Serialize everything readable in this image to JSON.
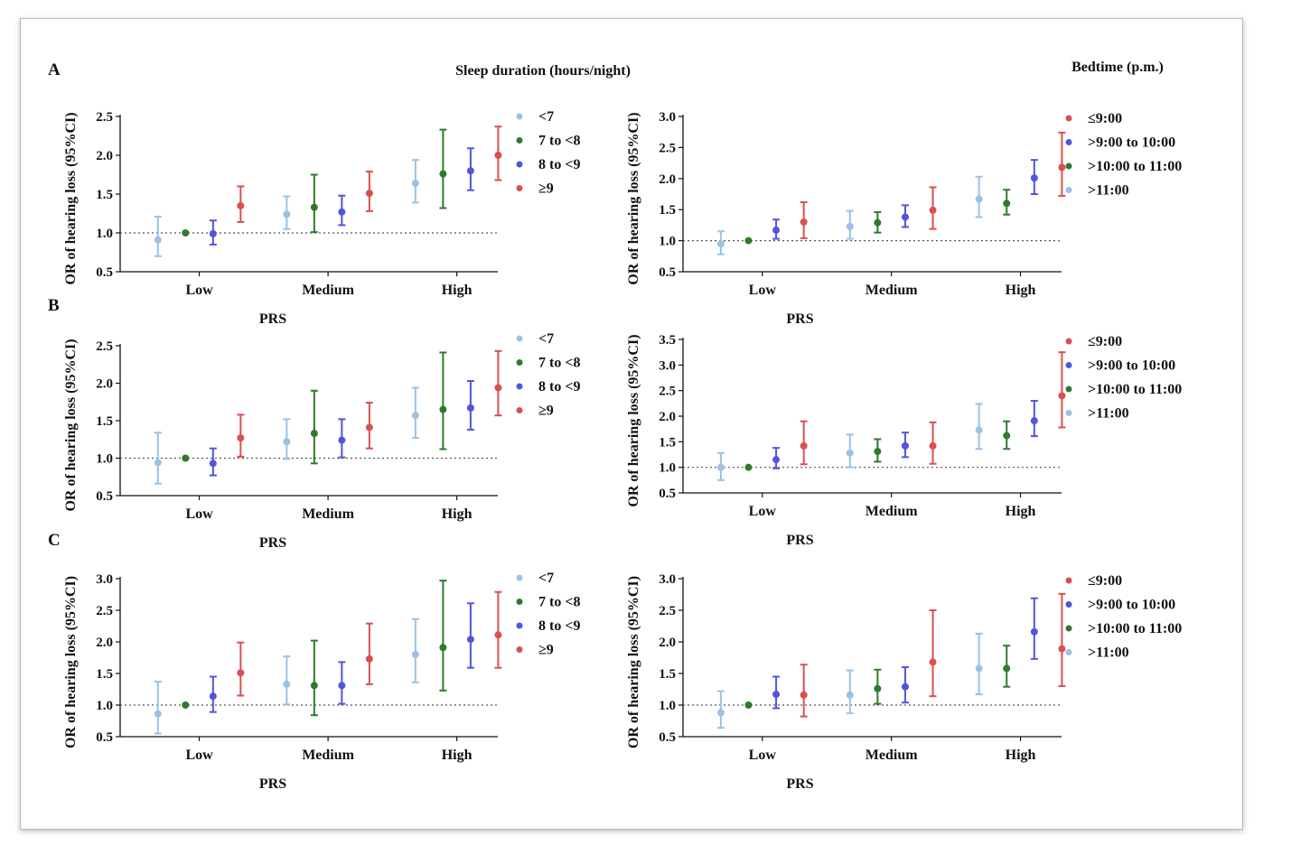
{
  "figure": {
    "header_left": "Sleep duration (hours/night)",
    "header_right": "Bedtime (p.m.)"
  },
  "colors": {
    "light_blue": "#9cc1e8",
    "green": "#2f7a2b",
    "blue": "#4f55e0",
    "red": "#d95050"
  },
  "chart_data": [
    {
      "type": "scatter",
      "panel": "A",
      "category_label": "Sleep duration (hours/night)",
      "ylabel": "OR of hearing loss (95%CI)",
      "xlabel": "PRS",
      "categories": [
        "Low",
        "Medium",
        "High"
      ],
      "ylim": [
        0.5,
        2.5
      ],
      "yticks": [
        "0.5",
        "1.0",
        "1.5",
        "2.0",
        "2.5"
      ],
      "reference_line": 1.0,
      "series": [
        {
          "name": "<7",
          "color": "light_blue",
          "or": [
            0.91,
            1.24,
            1.64
          ],
          "lower": [
            0.7,
            1.05,
            1.39
          ],
          "upper": [
            1.21,
            1.47,
            1.94
          ]
        },
        {
          "name": "7 to <8",
          "color": "green",
          "or": [
            1.0,
            1.33,
            1.76
          ],
          "lower": [
            1.0,
            1.01,
            1.32
          ],
          "upper": [
            1.0,
            1.75,
            2.33
          ]
        },
        {
          "name": "8 to <9",
          "color": "blue",
          "or": [
            0.99,
            1.27,
            1.8
          ],
          "lower": [
            0.85,
            1.1,
            1.55
          ],
          "upper": [
            1.16,
            1.48,
            2.09
          ]
        },
        {
          "name": "≥9",
          "color": "red",
          "or": [
            1.35,
            1.51,
            2.0
          ],
          "lower": [
            1.14,
            1.28,
            1.68
          ],
          "upper": [
            1.6,
            1.79,
            2.37
          ]
        }
      ]
    },
    {
      "type": "scatter",
      "panel": "A",
      "category_label": "Bedtime (p.m.)",
      "ylabel": "OR of hearing loss (95%CI)",
      "xlabel": "PRS",
      "categories": [
        "Low",
        "Medium",
        "High"
      ],
      "ylim": [
        0.5,
        3.0
      ],
      "yticks": [
        "0.5",
        "1.0",
        "1.5",
        "2.0",
        "2.5",
        "3.0"
      ],
      "reference_line": 1.0,
      "series": [
        {
          "name": ">11:00",
          "color": "light_blue",
          "or": [
            0.95,
            1.23,
            1.67
          ],
          "lower": [
            0.78,
            1.03,
            1.38
          ],
          "upper": [
            1.15,
            1.48,
            2.03
          ]
        },
        {
          "name": ">10:00 to 11:00",
          "color": "green",
          "or": [
            1.0,
            1.29,
            1.6
          ],
          "lower": [
            1.0,
            1.13,
            1.42
          ],
          "upper": [
            1.0,
            1.46,
            1.82
          ]
        },
        {
          "name": ">9:00 to 10:00",
          "color": "blue",
          "or": [
            1.17,
            1.38,
            2.01
          ],
          "lower": [
            1.03,
            1.22,
            1.75
          ],
          "upper": [
            1.34,
            1.57,
            2.3
          ]
        },
        {
          "name": "≤9:00",
          "color": "red",
          "or": [
            1.3,
            1.49,
            2.18
          ],
          "lower": [
            1.04,
            1.19,
            1.72
          ],
          "upper": [
            1.62,
            1.86,
            2.74
          ]
        }
      ]
    },
    {
      "type": "scatter",
      "panel": "B",
      "category_label": "Sleep duration (hours/night)",
      "ylabel": "OR of hearing loss (95%CI)",
      "xlabel": "PRS",
      "categories": [
        "Low",
        "Medium",
        "High"
      ],
      "ylim": [
        0.5,
        2.5
      ],
      "yticks": [
        "0.5",
        "1.0",
        "1.5",
        "2.0",
        "2.5"
      ],
      "reference_line": 1.0,
      "series": [
        {
          "name": "<7",
          "color": "light_blue",
          "or": [
            0.94,
            1.22,
            1.57
          ],
          "lower": [
            0.66,
            0.99,
            1.27
          ],
          "upper": [
            1.34,
            1.52,
            1.94
          ]
        },
        {
          "name": "7 to <8",
          "color": "green",
          "or": [
            1.0,
            1.33,
            1.65
          ],
          "lower": [
            1.0,
            0.93,
            1.12
          ],
          "upper": [
            1.0,
            1.9,
            2.41
          ]
        },
        {
          "name": "8 to <9",
          "color": "blue",
          "or": [
            0.93,
            1.24,
            1.67
          ],
          "lower": [
            0.77,
            1.01,
            1.38
          ],
          "upper": [
            1.13,
            1.52,
            2.03
          ]
        },
        {
          "name": "≥9",
          "color": "red",
          "or": [
            1.27,
            1.41,
            1.94
          ],
          "lower": [
            1.02,
            1.13,
            1.57
          ],
          "upper": [
            1.58,
            1.74,
            2.43
          ]
        }
      ]
    },
    {
      "type": "scatter",
      "panel": "B",
      "category_label": "Bedtime (p.m.)",
      "ylabel": "OR of hearing loss (95%CI)",
      "xlabel": "PRS",
      "categories": [
        "Low",
        "Medium",
        "High"
      ],
      "ylim": [
        0.5,
        3.5
      ],
      "yticks": [
        "0.5",
        "1.0",
        "1.5",
        "2.0",
        "2.5",
        "3.0",
        "3.5"
      ],
      "reference_line": 1.0,
      "series": [
        {
          "name": ">11:00",
          "color": "light_blue",
          "or": [
            1.0,
            1.28,
            1.73
          ],
          "lower": [
            0.75,
            1.0,
            1.36
          ],
          "upper": [
            1.28,
            1.64,
            2.24
          ]
        },
        {
          "name": ">10:00 to 11:00",
          "color": "green",
          "or": [
            1.0,
            1.31,
            1.62
          ],
          "lower": [
            1.0,
            1.11,
            1.36
          ],
          "upper": [
            1.0,
            1.55,
            1.9
          ]
        },
        {
          "name": ">9:00 to 10:00",
          "color": "blue",
          "or": [
            1.15,
            1.42,
            1.91
          ],
          "lower": [
            0.98,
            1.2,
            1.61
          ],
          "upper": [
            1.38,
            1.68,
            2.3
          ]
        },
        {
          "name": "≤9:00",
          "color": "red",
          "or": [
            1.42,
            1.42,
            2.4
          ],
          "lower": [
            1.06,
            1.07,
            1.78
          ],
          "upper": [
            1.9,
            1.88,
            3.25
          ]
        }
      ]
    },
    {
      "type": "scatter",
      "panel": "C",
      "category_label": "Sleep duration (hours/night)",
      "ylabel": "OR of hearing loss (95%CI)",
      "xlabel": "PRS",
      "categories": [
        "Low",
        "Medium",
        "High"
      ],
      "ylim": [
        0.5,
        3.0
      ],
      "yticks": [
        "0.5",
        "1.0",
        "1.5",
        "2.0",
        "2.5",
        "3.0"
      ],
      "reference_line": 1.0,
      "series": [
        {
          "name": "<7",
          "color": "light_blue",
          "or": [
            0.86,
            1.33,
            1.8
          ],
          "lower": [
            0.55,
            1.01,
            1.36
          ],
          "upper": [
            1.37,
            1.77,
            2.36
          ]
        },
        {
          "name": "7 to <8",
          "color": "green",
          "or": [
            1.0,
            1.31,
            1.91
          ],
          "lower": [
            1.0,
            0.84,
            1.23
          ],
          "upper": [
            1.0,
            2.02,
            2.97
          ]
        },
        {
          "name": "8 to <9",
          "color": "blue",
          "or": [
            1.14,
            1.31,
            2.04
          ],
          "lower": [
            0.89,
            1.02,
            1.59
          ],
          "upper": [
            1.45,
            1.68,
            2.61
          ]
        },
        {
          "name": "≥9",
          "color": "red",
          "or": [
            1.51,
            1.73,
            2.11
          ],
          "lower": [
            1.15,
            1.33,
            1.59
          ],
          "upper": [
            1.99,
            2.29,
            2.79
          ]
        }
      ]
    },
    {
      "type": "scatter",
      "panel": "C",
      "category_label": "Bedtime (p.m.)",
      "ylabel": "OR of hearing loss (95%CI)",
      "xlabel": "PRS",
      "categories": [
        "Low",
        "Medium",
        "High"
      ],
      "ylim": [
        0.5,
        3.0
      ],
      "yticks": [
        "0.5",
        "1.0",
        "1.5",
        "2.0",
        "2.5",
        "3.0"
      ],
      "reference_line": 1.0,
      "series": [
        {
          "name": ">11:00",
          "color": "light_blue",
          "or": [
            0.88,
            1.16,
            1.58
          ],
          "lower": [
            0.64,
            0.87,
            1.17
          ],
          "upper": [
            1.22,
            1.55,
            2.13
          ]
        },
        {
          "name": ">10:00 to 11:00",
          "color": "green",
          "or": [
            1.0,
            1.26,
            1.58
          ],
          "lower": [
            1.0,
            1.02,
            1.29
          ],
          "upper": [
            1.0,
            1.56,
            1.94
          ]
        },
        {
          "name": ">9:00 to 10:00",
          "color": "blue",
          "or": [
            1.17,
            1.29,
            2.16
          ],
          "lower": [
            0.95,
            1.04,
            1.73
          ],
          "upper": [
            1.45,
            1.6,
            2.69
          ]
        },
        {
          "name": "≤9:00",
          "color": "red",
          "or": [
            1.16,
            1.68,
            1.89
          ],
          "lower": [
            0.82,
            1.14,
            1.3
          ],
          "upper": [
            1.64,
            2.5,
            2.76
          ]
        }
      ]
    }
  ]
}
